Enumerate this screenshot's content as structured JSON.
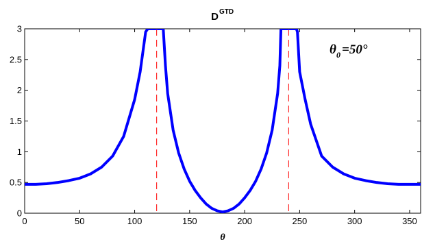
{
  "chart_data": {
    "type": "line",
    "title": "D",
    "title_superscript": "GTD",
    "xlabel": "θ",
    "ylabel": "",
    "xlim": [
      0,
      360
    ],
    "ylim": [
      0,
      3
    ],
    "x_ticks": [
      0,
      50,
      100,
      150,
      200,
      250,
      300,
      350
    ],
    "y_ticks": [
      0,
      0.5,
      1,
      1.5,
      2,
      2.5,
      3
    ],
    "x_tick_labels": [
      "0",
      "50",
      "100",
      "150",
      "200",
      "250",
      "300",
      "350"
    ],
    "y_tick_labels": [
      "0",
      "0.5",
      "1",
      "1.5",
      "2",
      "2.5",
      "3"
    ],
    "grid": false,
    "annotation": {
      "main": "θ",
      "subscript": "0",
      "suffix": "=50°"
    },
    "series": [
      {
        "color": "#0000ff",
        "style": "solid",
        "x": [
          0,
          10,
          20,
          30,
          40,
          50,
          60,
          70,
          80,
          90,
          100,
          105,
          110,
          112,
          113,
          114,
          115,
          116,
          117,
          118,
          119
        ],
        "y": [
          0.47,
          0.47,
          0.48,
          0.5,
          0.53,
          0.57,
          0.64,
          0.75,
          0.93,
          1.25,
          1.85,
          2.3,
          2.95,
          3.0,
          3.0,
          3.0,
          3.0,
          3.0,
          3.0,
          3.0,
          3.0
        ]
      },
      {
        "color": "#0000ff",
        "style": "solid",
        "x": [
          121,
          122,
          123,
          124,
          125,
          126,
          128,
          130,
          135,
          140,
          145,
          150,
          155,
          160,
          165,
          170,
          175,
          180
        ],
        "y": [
          3.0,
          3.0,
          3.0,
          3.0,
          3.0,
          3.0,
          2.4,
          1.95,
          1.35,
          0.98,
          0.72,
          0.52,
          0.37,
          0.25,
          0.15,
          0.08,
          0.04,
          0.02
        ]
      },
      {
        "color": "#0000ff",
        "style": "solid",
        "x": [
          180,
          185,
          190,
          195,
          200,
          205,
          210,
          215,
          220,
          225,
          230,
          232,
          233,
          234,
          235,
          236,
          237,
          238,
          239
        ],
        "y": [
          0.02,
          0.04,
          0.08,
          0.15,
          0.25,
          0.37,
          0.52,
          0.72,
          0.98,
          1.35,
          1.95,
          2.4,
          3.0,
          3.0,
          3.0,
          3.0,
          3.0,
          3.0,
          3.0
        ]
      },
      {
        "color": "#0000ff",
        "style": "solid",
        "x": [
          241,
          242,
          243,
          244,
          245,
          246,
          247,
          248,
          250,
          255,
          260,
          270,
          280,
          290,
          300,
          310,
          320,
          330,
          340,
          350,
          360
        ],
        "y": [
          3.0,
          3.0,
          3.0,
          3.0,
          3.0,
          3.0,
          3.0,
          2.95,
          2.3,
          1.85,
          1.45,
          0.93,
          0.75,
          0.64,
          0.57,
          0.53,
          0.5,
          0.48,
          0.47,
          0.47,
          0.47
        ]
      }
    ],
    "vertical_lines": [
      {
        "x": 120,
        "color": "#ff0000",
        "style": "dashed"
      },
      {
        "x": 240,
        "color": "#ff0000",
        "style": "dashed"
      }
    ]
  }
}
